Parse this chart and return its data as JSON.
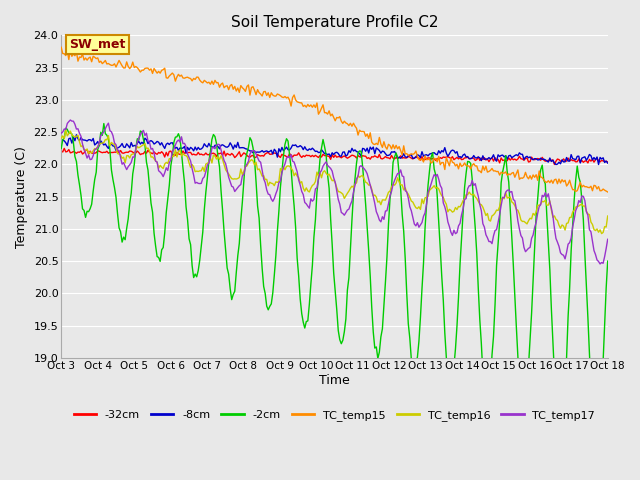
{
  "title": "Soil Temperature Profile C2",
  "xlabel": "Time",
  "ylabel": "Temperature (C)",
  "ylim": [
    19.0,
    24.0
  ],
  "yticks": [
    19.0,
    19.5,
    20.0,
    20.5,
    21.0,
    21.5,
    22.0,
    22.5,
    23.0,
    23.5,
    24.0
  ],
  "xtick_labels": [
    "Oct 3",
    "Oct 4",
    "Oct 5",
    "Oct 6",
    "Oct 7",
    "Oct 8",
    "Oct 9",
    "Oct 10",
    "Oct 11",
    "Oct 12",
    "Oct 13",
    "Oct 14",
    "Oct 15",
    "Oct 16",
    "Oct 17",
    "Oct 18"
  ],
  "fig_bg_color": "#e8e8e8",
  "ax_bg_color": "#e8e8e8",
  "grid_color": "#ffffff",
  "annotation_text": "SW_met",
  "annotation_color": "#8b0000",
  "annotation_bg": "#ffff99",
  "annotation_border": "#cc8800",
  "series": [
    {
      "name": "-32cm",
      "color": "#ff0000"
    },
    {
      "name": "-8cm",
      "color": "#0000cc"
    },
    {
      "name": "-2cm",
      "color": "#00cc00"
    },
    {
      "name": "TC_temp15",
      "color": "#ff8c00"
    },
    {
      "name": "TC_temp16",
      "color": "#cccc00"
    },
    {
      "name": "TC_temp17",
      "color": "#9933cc"
    }
  ]
}
